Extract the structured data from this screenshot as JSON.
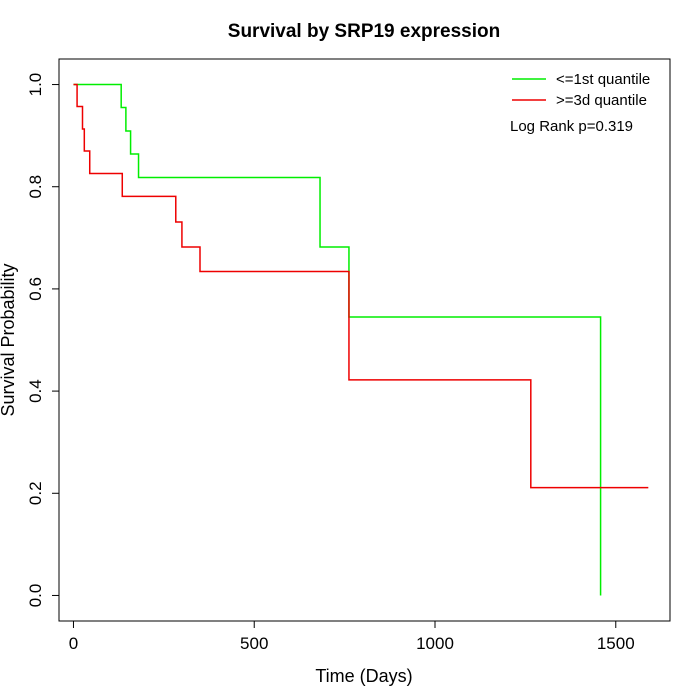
{
  "chart_data": {
    "type": "line",
    "title": "Survival by SRP19 expression",
    "xlabel": "Time (Days)",
    "ylabel": "Survival Probability",
    "xlim": [
      -40,
      1650
    ],
    "ylim": [
      -0.05,
      1.05
    ],
    "x_ticks": [
      0,
      500,
      1000,
      1500
    ],
    "y_ticks": [
      0.0,
      0.2,
      0.4,
      0.6,
      0.8,
      1.0
    ],
    "x_tick_labels": [
      "0",
      "500",
      "1000",
      "1500"
    ],
    "y_tick_labels": [
      "0.0",
      "0.2",
      "0.4",
      "0.6",
      "0.8",
      "1.0"
    ],
    "legend_placement": "top-right",
    "annotation": "Log Rank p=0.319",
    "series": [
      {
        "name": "<=1st quantile",
        "color": "#00ee00",
        "steps": [
          [
            0,
            1.0
          ],
          [
            132,
            0.955
          ],
          [
            145,
            0.909
          ],
          [
            158,
            0.864
          ],
          [
            180,
            0.818
          ],
          [
            682,
            0.682
          ],
          [
            762,
            0.545
          ],
          [
            1458,
            0.0
          ]
        ]
      },
      {
        "name": ">=3d quantile",
        "color": "#ee0000",
        "steps": [
          [
            0,
            1.0
          ],
          [
            10,
            0.957
          ],
          [
            25,
            0.913
          ],
          [
            30,
            0.87
          ],
          [
            45,
            0.826
          ],
          [
            135,
            0.781
          ],
          [
            283,
            0.731
          ],
          [
            300,
            0.682
          ],
          [
            350,
            0.634
          ],
          [
            762,
            0.422
          ],
          [
            1265,
            0.211
          ],
          [
            1590,
            0.211
          ]
        ]
      }
    ]
  }
}
